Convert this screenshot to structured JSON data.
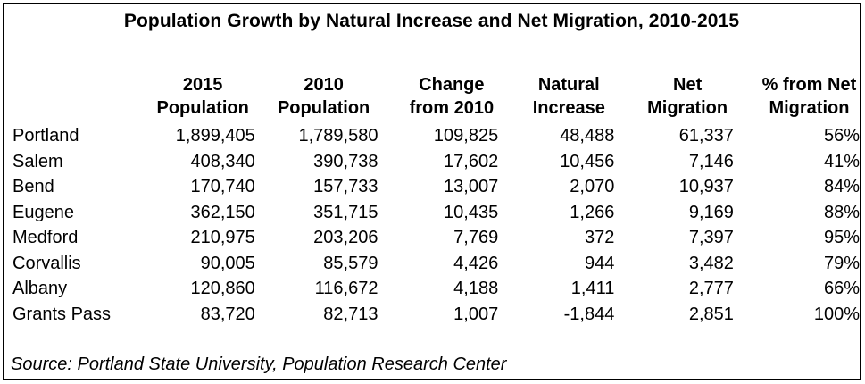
{
  "title": "Population Growth by Natural Increase and Net Migration, 2010-2015",
  "headers": [
    {
      "l1": "",
      "l2": ""
    },
    {
      "l1": "2015",
      "l2": "Population"
    },
    {
      "l1": "2010",
      "l2": "Population"
    },
    {
      "l1": "Change",
      "l2": "from 2010"
    },
    {
      "l1": "Natural",
      "l2": "Increase"
    },
    {
      "l1": "Net",
      "l2": "Migration"
    },
    {
      "l1": "% from Net",
      "l2": "Migration"
    }
  ],
  "rows": [
    {
      "city": "Portland",
      "pop2015": "1,899,405",
      "pop2010": "1,789,580",
      "change": "109,825",
      "natural": "48,488",
      "migration": "61,337",
      "pct": "56%"
    },
    {
      "city": "Salem",
      "pop2015": "408,340",
      "pop2010": "390,738",
      "change": "17,602",
      "natural": "10,456",
      "migration": "7,146",
      "pct": "41%"
    },
    {
      "city": "Bend",
      "pop2015": "170,740",
      "pop2010": "157,733",
      "change": "13,007",
      "natural": "2,070",
      "migration": "10,937",
      "pct": "84%"
    },
    {
      "city": "Eugene",
      "pop2015": "362,150",
      "pop2010": "351,715",
      "change": "10,435",
      "natural": "1,266",
      "migration": "9,169",
      "pct": "88%"
    },
    {
      "city": "Medford",
      "pop2015": "210,975",
      "pop2010": "203,206",
      "change": "7,769",
      "natural": "372",
      "migration": "7,397",
      "pct": "95%"
    },
    {
      "city": "Corvallis",
      "pop2015": "90,005",
      "pop2010": "85,579",
      "change": "4,426",
      "natural": "944",
      "migration": "3,482",
      "pct": "79%"
    },
    {
      "city": "Albany",
      "pop2015": "120,860",
      "pop2010": "116,672",
      "change": "4,188",
      "natural": "1,411",
      "migration": "2,777",
      "pct": "66%"
    },
    {
      "city": "Grants Pass",
      "pop2015": "83,720",
      "pop2010": "82,713",
      "change": "1,007",
      "natural": "-1,844",
      "migration": "2,851",
      "pct": "100%"
    }
  ],
  "source": "Source: Portland State University, Population Research Center"
}
